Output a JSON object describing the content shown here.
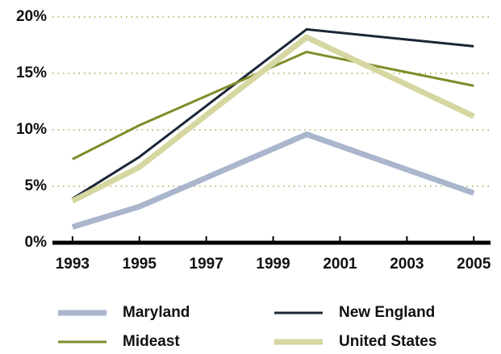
{
  "chart_data": {
    "type": "line",
    "x": [
      1993,
      1995,
      2000,
      2005
    ],
    "series": [
      {
        "name": "Maryland",
        "color": "#a9b6cc",
        "width": 7,
        "values": [
          1.4,
          3.2,
          9.6,
          4.4
        ]
      },
      {
        "name": "New England",
        "color": "#1a2637",
        "width": 3,
        "values": [
          3.9,
          7.6,
          18.9,
          17.4
        ]
      },
      {
        "name": "Mideast",
        "color": "#808c2a",
        "width": 3,
        "values": [
          7.4,
          10.4,
          16.9,
          13.9
        ]
      },
      {
        "name": "United States",
        "color": "#d6d6a0",
        "width": 7,
        "values": [
          3.7,
          6.7,
          18.2,
          11.2
        ]
      }
    ],
    "xlim": [
      1992.4,
      2005.5
    ],
    "xticks": [
      1993,
      1995,
      1997,
      1999,
      2001,
      2003,
      2005
    ],
    "ylim": [
      0,
      20
    ],
    "yticks": [
      {
        "value": 0,
        "label": "0%"
      },
      {
        "value": 5,
        "label": "5%"
      },
      {
        "value": 10,
        "label": "10%"
      },
      {
        "value": 15,
        "label": "15%"
      },
      {
        "value": 20,
        "label": "20%"
      }
    ],
    "grid": true,
    "legend": "bottom"
  }
}
